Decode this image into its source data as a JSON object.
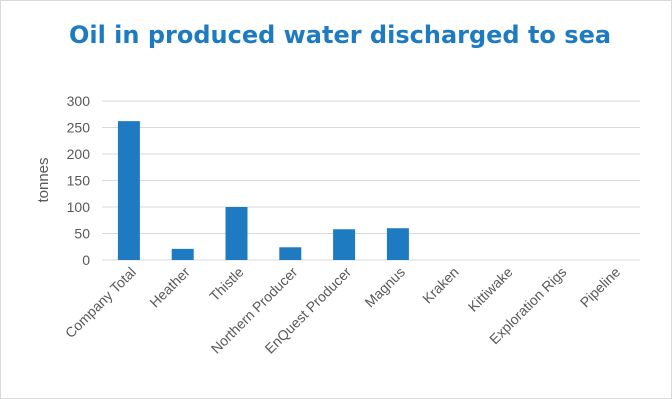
{
  "chart_data": {
    "type": "bar",
    "title": "Oil in produced water discharged to sea",
    "xlabel": "",
    "ylabel": "tonnes",
    "categories": [
      "Company Total",
      "Heather",
      "Thistle",
      "Northern Producer",
      "EnQuest Producer",
      "Magnus",
      "Kraken",
      "Kittiwake",
      "Exploration Rigs",
      "Pipeline"
    ],
    "values": [
      262,
      21,
      100,
      24,
      58,
      60,
      0,
      0,
      0,
      0
    ],
    "ylim": [
      0,
      300
    ],
    "yticks": [
      0,
      50,
      100,
      150,
      200,
      250,
      300
    ],
    "grid": true,
    "legend": "none",
    "colors": {
      "bar": "#1f7bc1",
      "grid": "#d9d9d9",
      "text": "#595959",
      "title": "#1f7bc1"
    }
  }
}
